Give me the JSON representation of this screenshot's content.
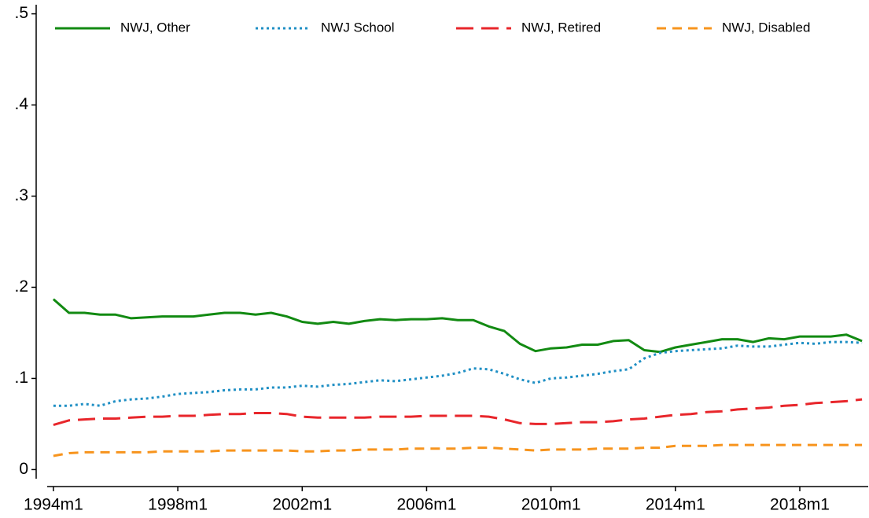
{
  "chart_data": {
    "type": "line",
    "x": [
      1994,
      1994.5,
      1995,
      1995.5,
      1996,
      1996.5,
      1997,
      1997.5,
      1998,
      1998.5,
      1999,
      1999.5,
      2000,
      2000.5,
      2001,
      2001.5,
      2002,
      2002.5,
      2003,
      2003.5,
      2004,
      2004.5,
      2005,
      2005.5,
      2006,
      2006.5,
      2007,
      2007.5,
      2008,
      2008.5,
      2009,
      2009.5,
      2010,
      2010.5,
      2011,
      2011.5,
      2012,
      2012.5,
      2013,
      2013.5,
      2014,
      2014.5,
      2015,
      2015.5,
      2016,
      2016.5,
      2017,
      2017.5,
      2018,
      2018.5,
      2019,
      2019.5,
      2020
    ],
    "series": [
      {
        "name": "NWJ, Other",
        "color": "#128a12",
        "style": "solid",
        "values": [
          0.187,
          0.172,
          0.172,
          0.17,
          0.17,
          0.166,
          0.167,
          0.168,
          0.168,
          0.168,
          0.17,
          0.172,
          0.172,
          0.17,
          0.172,
          0.168,
          0.162,
          0.16,
          0.162,
          0.16,
          0.163,
          0.165,
          0.164,
          0.165,
          0.165,
          0.166,
          0.164,
          0.164,
          0.157,
          0.152,
          0.138,
          0.13,
          0.133,
          0.134,
          0.137,
          0.137,
          0.141,
          0.142,
          0.131,
          0.129,
          0.134,
          0.137,
          0.14,
          0.143,
          0.143,
          0.14,
          0.144,
          0.143,
          0.146,
          0.146,
          0.146,
          0.148,
          0.141
        ]
      },
      {
        "name": "NWJ School",
        "color": "#1f8fc4",
        "style": "dot",
        "values": [
          0.07,
          0.07,
          0.072,
          0.07,
          0.075,
          0.077,
          0.078,
          0.08,
          0.083,
          0.084,
          0.085,
          0.087,
          0.088,
          0.088,
          0.09,
          0.09,
          0.092,
          0.091,
          0.093,
          0.094,
          0.096,
          0.098,
          0.097,
          0.099,
          0.101,
          0.103,
          0.106,
          0.111,
          0.11,
          0.105,
          0.099,
          0.095,
          0.1,
          0.101,
          0.103,
          0.105,
          0.108,
          0.11,
          0.122,
          0.128,
          0.13,
          0.131,
          0.132,
          0.133,
          0.136,
          0.135,
          0.135,
          0.137,
          0.139,
          0.138,
          0.14,
          0.14,
          0.139
        ]
      },
      {
        "name": "NWJ, Retired",
        "color": "#e8262b",
        "style": "longdash",
        "values": [
          0.049,
          0.054,
          0.055,
          0.056,
          0.056,
          0.057,
          0.058,
          0.058,
          0.059,
          0.059,
          0.06,
          0.061,
          0.061,
          0.062,
          0.062,
          0.061,
          0.058,
          0.057,
          0.057,
          0.057,
          0.057,
          0.058,
          0.058,
          0.058,
          0.059,
          0.059,
          0.059,
          0.059,
          0.058,
          0.055,
          0.051,
          0.05,
          0.05,
          0.051,
          0.052,
          0.052,
          0.053,
          0.055,
          0.056,
          0.058,
          0.06,
          0.061,
          0.063,
          0.064,
          0.066,
          0.067,
          0.068,
          0.07,
          0.071,
          0.073,
          0.074,
          0.075,
          0.077
        ]
      },
      {
        "name": "NWJ, Disabled",
        "color": "#f7941d",
        "style": "dash",
        "values": [
          0.015,
          0.018,
          0.019,
          0.019,
          0.019,
          0.019,
          0.019,
          0.02,
          0.02,
          0.02,
          0.02,
          0.021,
          0.021,
          0.021,
          0.021,
          0.021,
          0.02,
          0.02,
          0.021,
          0.021,
          0.022,
          0.022,
          0.022,
          0.023,
          0.023,
          0.023,
          0.023,
          0.024,
          0.024,
          0.023,
          0.022,
          0.021,
          0.022,
          0.022,
          0.022,
          0.023,
          0.023,
          0.023,
          0.024,
          0.024,
          0.026,
          0.026,
          0.026,
          0.027,
          0.027,
          0.027,
          0.027,
          0.027,
          0.027,
          0.027,
          0.027,
          0.027,
          0.027
        ]
      }
    ],
    "xlim": [
      1993.8,
      2020.2
    ],
    "xticks": [
      {
        "value": 1994,
        "label": "1994m1"
      },
      {
        "value": 1998,
        "label": "1998m1"
      },
      {
        "value": 2002,
        "label": "2002m1"
      },
      {
        "value": 2006,
        "label": "2006m1"
      },
      {
        "value": 2010,
        "label": "2010m1"
      },
      {
        "value": 2014,
        "label": "2014m1"
      },
      {
        "value": 2018,
        "label": "2018m1"
      }
    ],
    "ylim": [
      -0.01,
      0.51
    ],
    "yticks": [
      0,
      {
        "value": 0.1,
        "label": ".1"
      },
      {
        "value": 0.2,
        "label": ".2"
      },
      {
        "value": 0.3,
        "label": ".3"
      },
      {
        "value": 0.4,
        "label": ".4"
      },
      {
        "value": 0.5,
        "label": ".5"
      }
    ],
    "legend": "top"
  }
}
